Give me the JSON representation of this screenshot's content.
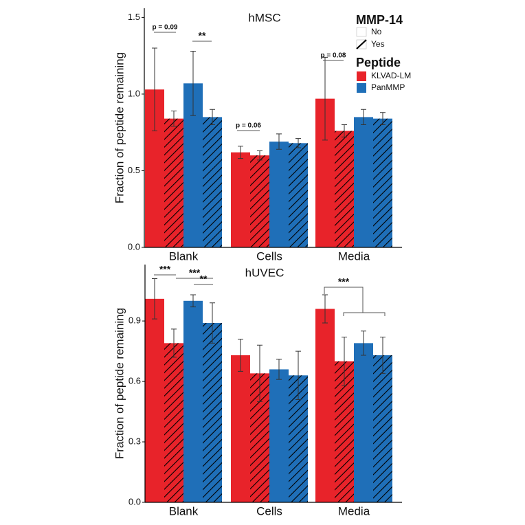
{
  "chart_data": [
    {
      "type": "bar",
      "title": "hMSC",
      "y_label": "Fraction of peptide remaining",
      "categories": [
        "Blank",
        "Cells",
        "Media"
      ],
      "series": [
        {
          "color": "#e8232a",
          "hatch": false,
          "values": [
            1.03,
            0.62,
            0.97
          ],
          "errors": [
            0.27,
            0.04,
            0.27
          ]
        },
        {
          "color": "#e8232a",
          "hatch": true,
          "values": [
            0.84,
            0.6,
            0.76
          ],
          "errors": [
            0.05,
            0.03,
            0.04
          ]
        },
        {
          "color": "#1f6fb8",
          "hatch": false,
          "values": [
            1.07,
            0.69,
            0.85
          ],
          "errors": [
            0.21,
            0.05,
            0.05
          ]
        },
        {
          "color": "#1f6fb8",
          "hatch": true,
          "values": [
            0.85,
            0.68,
            0.84
          ],
          "errors": [
            0.05,
            0.03,
            0.04
          ]
        }
      ],
      "ylim": [
        0,
        1.56
      ],
      "yticks": [
        {
          "value": 0,
          "label": "0.0"
        },
        0.5,
        {
          "value": 1,
          "label": "1.0"
        },
        1.5
      ],
      "annotations": [
        "p = 0.09",
        "**",
        "p = 0.06",
        "p = 0.08"
      ],
      "legend": {
        "mmp_title": "MMP-14",
        "mmp_items": [
          "No",
          "Yes"
        ],
        "peptide_title": "Peptide",
        "peptide_items": [
          {
            "name": "KLVAD-LM",
            "color": "#e8232a"
          },
          {
            "name": "PanMMP",
            "color": "#1f6fb8"
          }
        ]
      }
    },
    {
      "type": "bar",
      "title": "hUVEC",
      "y_label": "Fraction of peptide remaining",
      "categories": [
        "Blank",
        "Cells",
        "Media"
      ],
      "series": [
        {
          "color": "#e8232a",
          "hatch": false,
          "values": [
            1.01,
            0.73,
            0.96
          ],
          "errors": [
            0.1,
            0.08,
            0.07
          ]
        },
        {
          "color": "#e8232a",
          "hatch": true,
          "values": [
            0.79,
            0.64,
            0.7
          ],
          "errors": [
            0.07,
            0.14,
            0.12
          ]
        },
        {
          "color": "#1f6fb8",
          "hatch": false,
          "values": [
            1.0,
            0.66,
            0.79
          ],
          "errors": [
            0.03,
            0.05,
            0.06
          ]
        },
        {
          "color": "#1f6fb8",
          "hatch": true,
          "values": [
            0.89,
            0.63,
            0.73
          ],
          "errors": [
            0.1,
            0.12,
            0.09
          ]
        }
      ],
      "ylim": [
        0,
        1.18
      ],
      "yticks": [
        {
          "value": 0,
          "label": "0.0"
        },
        0.3,
        0.6,
        0.9
      ],
      "annotations": [
        "***",
        "***",
        "**",
        "***"
      ]
    }
  ]
}
